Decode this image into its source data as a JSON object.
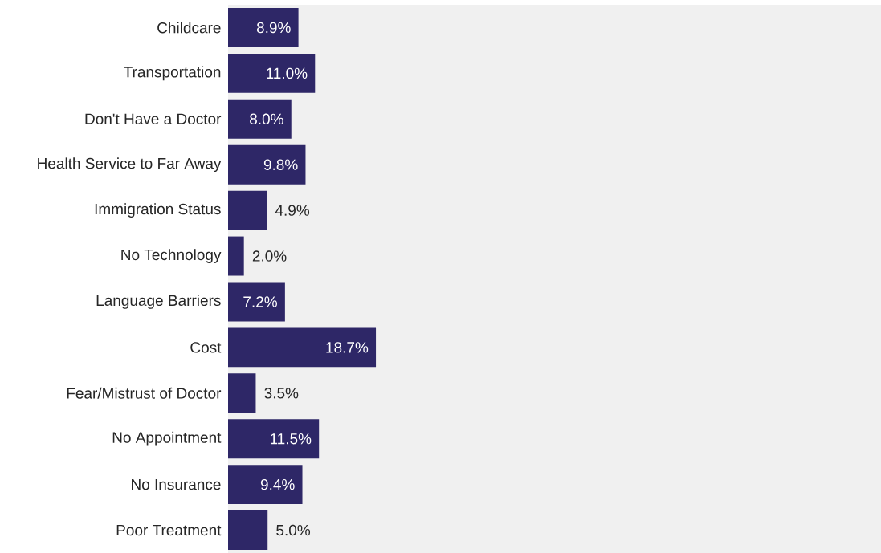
{
  "chart_data": {
    "type": "bar",
    "orientation": "horizontal",
    "categories": [
      "Childcare",
      "Transportation",
      "Don't Have a Doctor",
      "Health Service to Far Away",
      "Immigration Status",
      "No Technology",
      "Language Barriers",
      "Cost",
      "Fear/Mistrust of Doctor",
      "No Appointment",
      "No Insurance",
      "Poor Treatment"
    ],
    "values": [
      8.9,
      11.0,
      8.0,
      9.8,
      4.9,
      2.0,
      7.2,
      18.7,
      3.5,
      11.5,
      9.4,
      5.0
    ],
    "value_labels": [
      "8.9%",
      "11.0%",
      "8.0%",
      "9.8%",
      "4.9%",
      "2.0%",
      "7.2%",
      "18.7%",
      "3.5%",
      "11.5%",
      "9.4%",
      "5.0%"
    ],
    "color": "#2e2767",
    "xlim": [
      0,
      82.6
    ],
    "tick_labels": "y"
  }
}
